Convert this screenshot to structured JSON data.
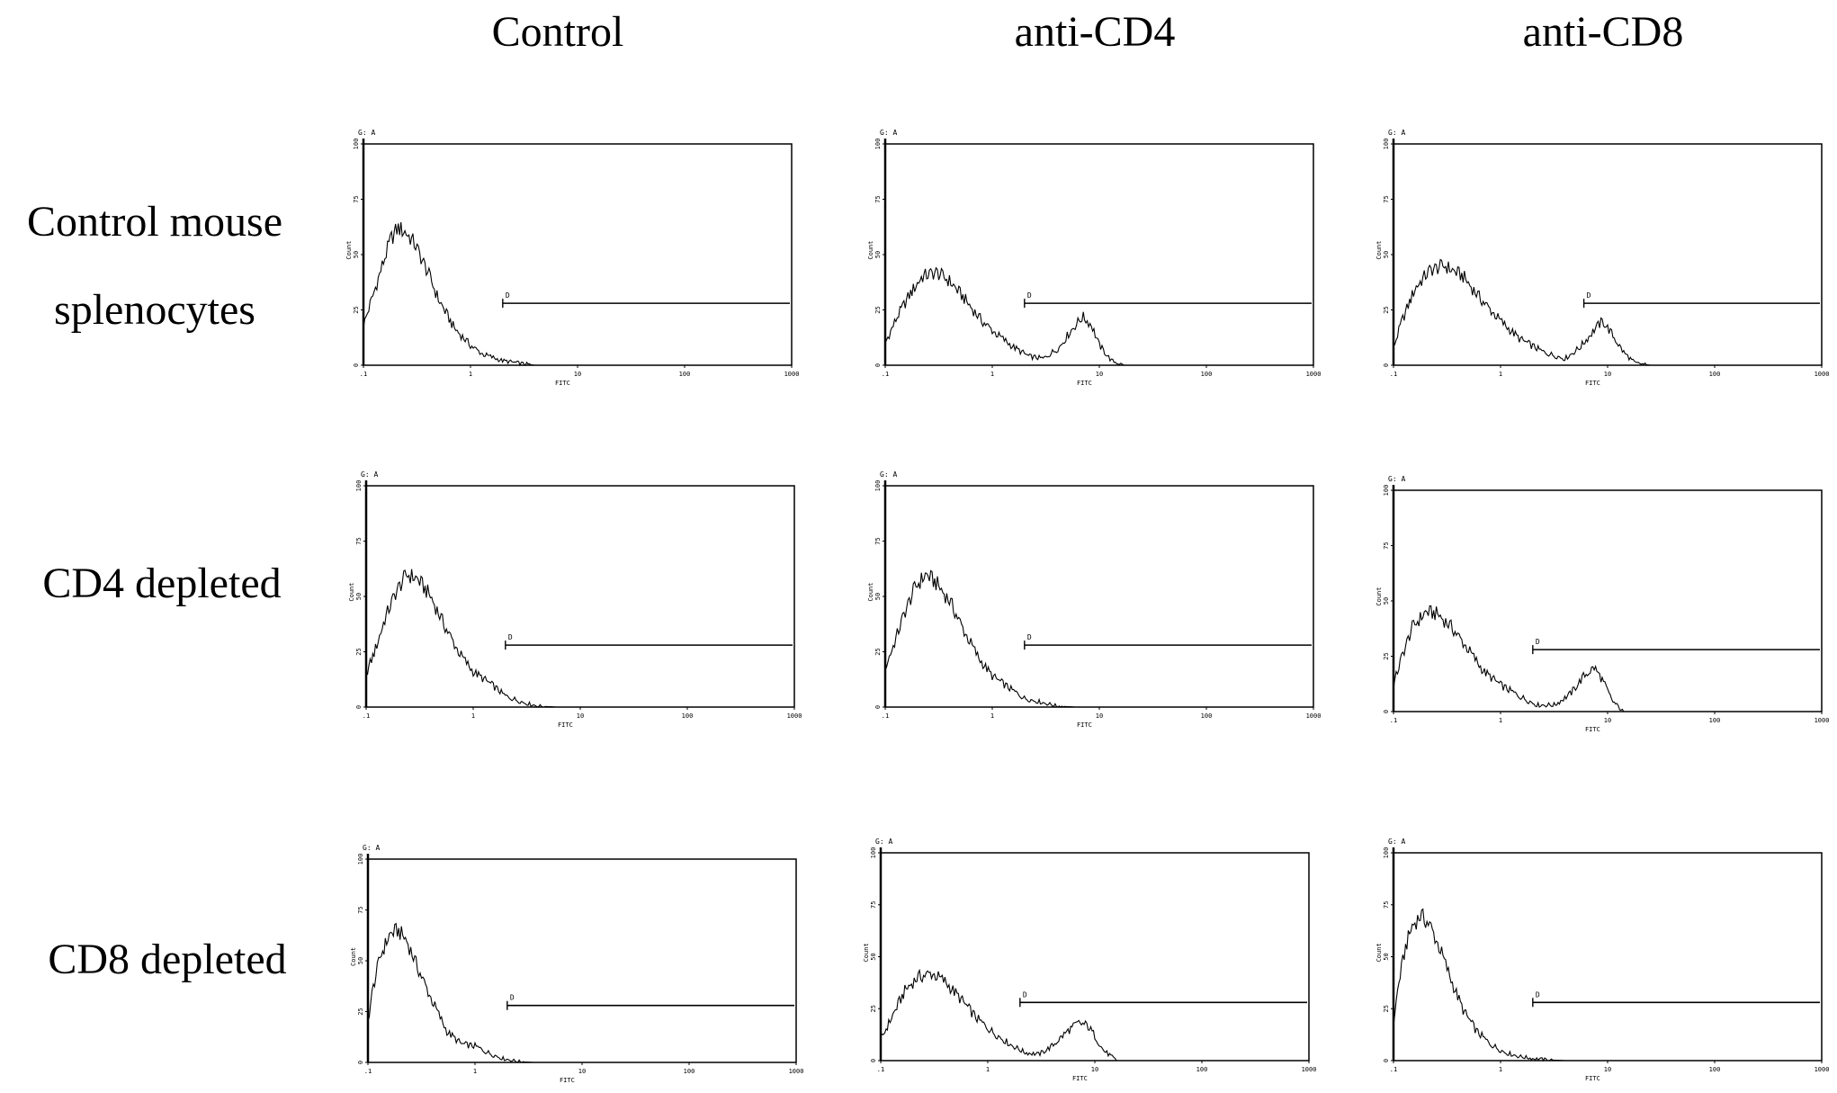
{
  "figure": {
    "columns": [
      "Control",
      "anti-CD4",
      "anti-CD8"
    ],
    "rows": [
      [
        "Control mouse",
        "splenocytes"
      ],
      [
        "CD4 depleted"
      ],
      [
        "CD8 depleted"
      ]
    ]
  },
  "chart_data": [
    {
      "type": "line",
      "row": "Control mouse splenocytes",
      "column": "Control",
      "gate_label": "G: A",
      "marker_label": "D",
      "xlabel": "FITC",
      "ylabel": "Count",
      "xscale": "log",
      "xlim": [
        0.1,
        1000
      ],
      "xticks": [
        ".1",
        "1",
        "10",
        "100",
        "1000"
      ],
      "ylim": [
        0,
        100
      ],
      "yticks": [
        "0",
        "25",
        "50",
        "75",
        "100"
      ],
      "gate_start": 2,
      "series": [
        {
          "x": [
            0.1,
            0.12,
            0.15,
            0.18,
            0.21,
            0.25,
            0.3,
            0.4,
            0.5,
            0.7,
            1,
            1.3,
            2,
            3,
            4,
            6,
            10,
            1000
          ],
          "y": [
            18,
            30,
            45,
            57,
            62,
            60,
            55,
            42,
            30,
            17,
            9,
            5,
            2,
            0.8,
            0,
            0,
            0,
            0
          ]
        }
      ]
    },
    {
      "type": "line",
      "row": "Control mouse splenocytes",
      "column": "anti-CD4",
      "gate_label": "G: A",
      "marker_label": "D",
      "xlabel": "FITC",
      "ylabel": "Count",
      "xscale": "log",
      "xlim": [
        0.1,
        1000
      ],
      "xticks": [
        ".1",
        "1",
        "10",
        "100",
        "1000"
      ],
      "ylim": [
        0,
        100
      ],
      "yticks": [
        "0",
        "25",
        "50",
        "75",
        "100"
      ],
      "gate_start": 2,
      "series": [
        {
          "x": [
            0.1,
            0.13,
            0.17,
            0.22,
            0.3,
            0.4,
            0.55,
            0.8,
            1.1,
            1.6,
            2.2,
            3,
            4.2,
            5.5,
            7,
            8.5,
            10,
            13,
            17,
            22,
            1000
          ],
          "y": [
            10,
            22,
            32,
            40,
            42,
            38,
            30,
            20,
            14,
            8,
            4,
            3,
            8,
            16,
            22,
            18,
            9,
            2,
            0,
            0,
            0
          ]
        }
      ]
    },
    {
      "type": "line",
      "row": "Control mouse splenocytes",
      "column": "anti-CD8",
      "gate_label": "G: A",
      "marker_label": "D",
      "xlabel": "FITC",
      "ylabel": "Count",
      "xscale": "log",
      "xlim": [
        0.1,
        1000
      ],
      "xticks": [
        ".1",
        "1",
        "10",
        "100",
        "1000"
      ],
      "ylim": [
        0,
        100
      ],
      "yticks": [
        "0",
        "25",
        "50",
        "75",
        "100"
      ],
      "gate_start": 6,
      "series": [
        {
          "x": [
            0.1,
            0.12,
            0.16,
            0.22,
            0.3,
            0.45,
            0.65,
            1,
            1.5,
            2.5,
            4,
            5.5,
            7.5,
            9,
            11,
            14,
            18,
            25,
            1000
          ],
          "y": [
            8,
            20,
            35,
            43,
            45,
            40,
            30,
            20,
            12,
            6,
            3,
            8,
            16,
            20,
            14,
            6,
            1,
            0,
            0
          ]
        }
      ]
    },
    {
      "type": "line",
      "row": "CD4 depleted",
      "column": "Control",
      "gate_label": "G: A",
      "marker_label": "D",
      "xlabel": "FITC",
      "ylabel": "Count",
      "xscale": "log",
      "xlim": [
        0.1,
        1000
      ],
      "xticks": [
        ".1",
        "1",
        "10",
        "100",
        "1000"
      ],
      "ylim": [
        0,
        100
      ],
      "yticks": [
        "0",
        "25",
        "50",
        "75",
        "100"
      ],
      "gate_start": 2,
      "series": [
        {
          "x": [
            0.1,
            0.12,
            0.15,
            0.19,
            0.24,
            0.3,
            0.4,
            0.55,
            0.75,
            1,
            1.5,
            2,
            3,
            4,
            6,
            10,
            1000
          ],
          "y": [
            15,
            25,
            40,
            52,
            60,
            58,
            50,
            36,
            24,
            16,
            10,
            5,
            2,
            0.5,
            0,
            0,
            0
          ]
        }
      ]
    },
    {
      "type": "line",
      "row": "CD4 depleted",
      "column": "anti-CD4",
      "gate_label": "G: A",
      "marker_label": "D",
      "xlabel": "FITC",
      "ylabel": "Count",
      "xscale": "log",
      "xlim": [
        0.1,
        1000
      ],
      "xticks": [
        ".1",
        "1",
        "10",
        "100",
        "1000"
      ],
      "ylim": [
        0,
        100
      ],
      "yticks": [
        "0",
        "25",
        "50",
        "75",
        "100"
      ],
      "gate_start": 2,
      "series": [
        {
          "x": [
            0.1,
            0.12,
            0.15,
            0.19,
            0.24,
            0.3,
            0.4,
            0.55,
            0.75,
            1,
            1.5,
            2,
            3,
            4,
            6,
            10,
            1000
          ],
          "y": [
            18,
            28,
            42,
            54,
            60,
            56,
            48,
            34,
            22,
            14,
            8,
            4,
            2,
            0.5,
            0,
            0,
            0
          ]
        }
      ]
    },
    {
      "type": "line",
      "row": "CD4 depleted",
      "column": "anti-CD8",
      "gate_label": "G: A",
      "marker_label": "D",
      "xlabel": "FITC",
      "ylabel": "Count",
      "xscale": "log",
      "xlim": [
        0.1,
        1000
      ],
      "xticks": [
        ".1",
        "1",
        "10",
        "100",
        "1000"
      ],
      "ylim": [
        0,
        100
      ],
      "yticks": [
        "0",
        "25",
        "50",
        "75",
        "100"
      ],
      "gate_start": 2,
      "series": [
        {
          "x": [
            0.1,
            0.12,
            0.15,
            0.2,
            0.26,
            0.35,
            0.5,
            0.7,
            1,
            1.5,
            2.2,
            3.2,
            4.5,
            6,
            7.5,
            9,
            11,
            14,
            1000
          ],
          "y": [
            12,
            25,
            38,
            45,
            44,
            38,
            28,
            18,
            12,
            7,
            3,
            3,
            8,
            16,
            20,
            14,
            5,
            0,
            0
          ]
        }
      ]
    },
    {
      "type": "line",
      "row": "CD8 depleted",
      "column": "Control",
      "gate_label": "G: A",
      "marker_label": "D",
      "xlabel": "FITC",
      "ylabel": "Count",
      "xscale": "log",
      "xlim": [
        0.1,
        1000
      ],
      "xticks": [
        ".1",
        "1",
        "10",
        "100",
        "1000"
      ],
      "ylim": [
        0,
        100
      ],
      "yticks": [
        "0",
        "25",
        "50",
        "75",
        "100"
      ],
      "gate_start": 2,
      "series": [
        {
          "x": [
            0.1,
            0.11,
            0.13,
            0.16,
            0.19,
            0.23,
            0.3,
            0.4,
            0.55,
            0.75,
            1,
            1.3,
            1.8,
            2.5,
            3.5,
            5,
            1000
          ],
          "y": [
            20,
            35,
            52,
            63,
            65,
            60,
            45,
            30,
            15,
            9,
            8,
            5,
            2,
            0.5,
            0,
            0,
            0
          ]
        }
      ]
    },
    {
      "type": "line",
      "row": "CD8 depleted",
      "column": "anti-CD4",
      "gate_label": "G: A",
      "marker_label": "D",
      "xlabel": "FITC",
      "ylabel": "Count",
      "xscale": "log",
      "xlim": [
        0.1,
        1000
      ],
      "xticks": [
        ".1",
        "1",
        "10",
        "100",
        "1000"
      ],
      "ylim": [
        0,
        100
      ],
      "yticks": [
        "0",
        "25",
        "50",
        "75",
        "100"
      ],
      "gate_start": 2,
      "series": [
        {
          "x": [
            0.1,
            0.13,
            0.17,
            0.22,
            0.3,
            0.4,
            0.55,
            0.8,
            1.1,
            1.6,
            2.2,
            3,
            4,
            5.5,
            7,
            8.5,
            10,
            12,
            16,
            20,
            1000
          ],
          "y": [
            10,
            22,
            34,
            40,
            42,
            38,
            30,
            20,
            14,
            8,
            4,
            3,
            7,
            14,
            18,
            17,
            12,
            5,
            0,
            0,
            0
          ]
        }
      ]
    },
    {
      "type": "line",
      "row": "CD8 depleted",
      "column": "anti-CD8",
      "gate_label": "G: A",
      "marker_label": "D",
      "xlabel": "FITC",
      "ylabel": "Count",
      "xscale": "log",
      "xlim": [
        0.1,
        1000
      ],
      "xticks": [
        ".1",
        "1",
        "10",
        "100",
        "1000"
      ],
      "ylim": [
        0,
        100
      ],
      "yticks": [
        "0",
        "25",
        "50",
        "75",
        "100"
      ],
      "gate_start": 2,
      "series": [
        {
          "x": [
            0.1,
            0.11,
            0.13,
            0.15,
            0.18,
            0.22,
            0.28,
            0.35,
            0.45,
            0.6,
            0.8,
            1.1,
            1.5,
            2,
            3,
            4,
            6,
            10,
            1000
          ],
          "y": [
            18,
            35,
            55,
            65,
            70,
            65,
            52,
            38,
            24,
            14,
            8,
            4,
            2,
            1,
            0.3,
            0,
            0,
            0,
            0
          ]
        }
      ]
    }
  ]
}
